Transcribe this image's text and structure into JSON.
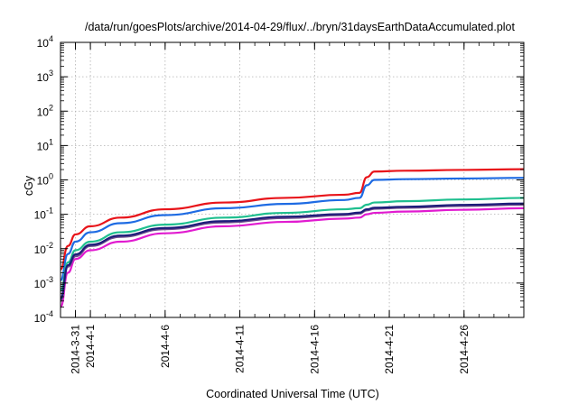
{
  "chart_data": {
    "type": "line",
    "title": "/data/run/goesPlots/archive/2014-04-29/flux/../bryn/31daysEarthDataAccumulated.plot",
    "xlabel": "Coordinated Universal Time (UTC)",
    "ylabel": "cGy",
    "y_scale": "log",
    "ylim": [
      0.0001,
      10000
    ],
    "y_ticks": [
      {
        "value": 0.0001,
        "base": "10",
        "exp": "-4"
      },
      {
        "value": 0.001,
        "base": "10",
        "exp": "-3"
      },
      {
        "value": 0.01,
        "base": "10",
        "exp": "-2"
      },
      {
        "value": 0.1,
        "base": "10",
        "exp": "-1"
      },
      {
        "value": 1,
        "base": "10",
        "exp": "0"
      },
      {
        "value": 10,
        "base": "10",
        "exp": "1"
      },
      {
        "value": 100,
        "base": "10",
        "exp": "2"
      },
      {
        "value": 1000,
        "base": "10",
        "exp": "3"
      },
      {
        "value": 10000,
        "base": "10",
        "exp": "4"
      }
    ],
    "xlim": [
      "2014-03-30",
      "2014-04-30"
    ],
    "x_ticks": [
      "2014-3-31",
      "2014-4-1",
      "2014-4-6",
      "2014-4-11",
      "2014-4-16",
      "2014-4-21",
      "2014-4-26"
    ],
    "grid": true,
    "series": [
      {
        "color": "#e8141a",
        "x": [
          "2014-03-30",
          "2014-03-30T12:00",
          "2014-03-31",
          "2014-04-01",
          "2014-04-03",
          "2014-04-06",
          "2014-04-10",
          "2014-04-14",
          "2014-04-18",
          "2014-04-19",
          "2014-04-19T12:00",
          "2014-04-20",
          "2014-04-22",
          "2014-04-26",
          "2014-04-30"
        ],
        "y": [
          0.0025,
          0.012,
          0.026,
          0.045,
          0.08,
          0.14,
          0.22,
          0.3,
          0.37,
          0.42,
          1.2,
          1.75,
          1.85,
          1.95,
          2.05
        ]
      },
      {
        "color": "#1e6be3",
        "x": [
          "2014-03-30",
          "2014-03-30T12:00",
          "2014-03-31",
          "2014-04-01",
          "2014-04-03",
          "2014-04-06",
          "2014-04-10",
          "2014-04-14",
          "2014-04-18",
          "2014-04-19",
          "2014-04-19T12:00",
          "2014-04-20",
          "2014-04-22",
          "2014-04-26",
          "2014-04-30"
        ],
        "y": [
          0.0012,
          0.007,
          0.016,
          0.03,
          0.055,
          0.095,
          0.15,
          0.2,
          0.26,
          0.3,
          0.7,
          1.0,
          1.05,
          1.1,
          1.15
        ]
      },
      {
        "color": "#1fbf8f",
        "x": [
          "2014-03-30",
          "2014-03-30T12:00",
          "2014-03-31",
          "2014-04-01",
          "2014-04-03",
          "2014-04-06",
          "2014-04-10",
          "2014-04-14",
          "2014-04-18",
          "2014-04-19",
          "2014-04-19T12:00",
          "2014-04-20",
          "2014-04-22",
          "2014-04-26",
          "2014-04-30"
        ],
        "y": [
          0.0006,
          0.004,
          0.009,
          0.016,
          0.03,
          0.05,
          0.08,
          0.11,
          0.14,
          0.15,
          0.19,
          0.22,
          0.24,
          0.27,
          0.3
        ]
      },
      {
        "color": "#e11bd0",
        "x": [
          "2014-03-30",
          "2014-03-30T12:00",
          "2014-03-31",
          "2014-04-01",
          "2014-04-03",
          "2014-04-06",
          "2014-04-10",
          "2014-04-14",
          "2014-04-18",
          "2014-04-19",
          "2014-04-19T12:00",
          "2014-04-20",
          "2014-04-22",
          "2014-04-26",
          "2014-04-30"
        ],
        "y": [
          0.0002,
          0.002,
          0.005,
          0.009,
          0.016,
          0.028,
          0.045,
          0.06,
          0.075,
          0.08,
          0.1,
          0.11,
          0.12,
          0.135,
          0.15
        ]
      },
      {
        "color": "#6b4b8c",
        "x": [
          "2014-03-30",
          "2014-03-30T12:00",
          "2014-03-31",
          "2014-04-01",
          "2014-04-03",
          "2014-04-06",
          "2014-04-10",
          "2014-04-14",
          "2014-04-18",
          "2014-04-19",
          "2014-04-19T12:00",
          "2014-04-20",
          "2014-04-22",
          "2014-04-26",
          "2014-04-30"
        ],
        "y": [
          0.0003,
          0.003,
          0.006,
          0.012,
          0.022,
          0.037,
          0.058,
          0.078,
          0.095,
          0.105,
          0.13,
          0.145,
          0.155,
          0.175,
          0.19
        ]
      },
      {
        "color": "#1c1c7a",
        "x": [
          "2014-03-30",
          "2014-03-30T12:00",
          "2014-03-31",
          "2014-04-01",
          "2014-04-03",
          "2014-04-06",
          "2014-04-10",
          "2014-04-14",
          "2014-04-18",
          "2014-04-19",
          "2014-04-19T12:00",
          "2014-04-20",
          "2014-04-22",
          "2014-04-26",
          "2014-04-30"
        ],
        "y": [
          0.00035,
          0.0033,
          0.0068,
          0.013,
          0.024,
          0.04,
          0.063,
          0.085,
          0.102,
          0.112,
          0.14,
          0.155,
          0.165,
          0.188,
          0.205
        ]
      }
    ]
  }
}
